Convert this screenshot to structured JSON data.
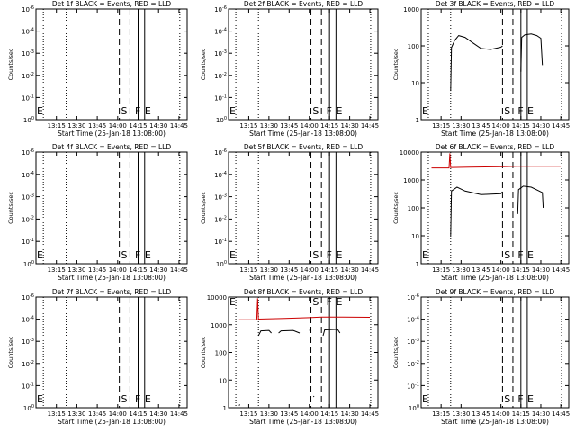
{
  "figure": {
    "xlabel": "Start Time (25-Jan-18 13:08:00)",
    "ylabel": "Counts/sec",
    "x_ticks": [
      "13:15",
      "13:30",
      "13:45",
      "14:00",
      "14:15",
      "14:30",
      "14:45"
    ],
    "marker_labels": [
      "E",
      "S",
      "F",
      "E"
    ],
    "colors": {
      "events": "#000000",
      "lld": "#cc0000"
    }
  },
  "chart_data": [
    {
      "type": "line",
      "title": "Det 1f BLACK = Events, RED = LLD",
      "scale": "log",
      "y_ticks": [
        "10^-6",
        "10^-4",
        "10^-3",
        "10^-2",
        "10^-1",
        "10^0"
      ],
      "series": []
    },
    {
      "type": "line",
      "title": "Det 2f BLACK = Events, RED = LLD",
      "scale": "log",
      "y_ticks": [
        "10^-6",
        "10^-4",
        "10^-3",
        "10^-2",
        "10^-1",
        "10^0"
      ],
      "series": []
    },
    {
      "type": "line",
      "title": "Det 3f BLACK = Events, RED = LLD",
      "scale": "log",
      "y_ticks": [
        "1000",
        "100",
        "10",
        "1"
      ],
      "series": [
        {
          "color": "#000000",
          "segments": [
            [
              [
                13.37,
                6
              ],
              [
                13.38,
                90
              ],
              [
                13.42,
                140
              ],
              [
                13.47,
                190
              ],
              [
                13.55,
                170
              ],
              [
                13.65,
                120
              ],
              [
                13.75,
                85
              ],
              [
                13.87,
                80
              ],
              [
                14.0,
                92
              ],
              [
                14.02,
                100
              ]
            ],
            [
              [
                14.25,
                20
              ],
              [
                14.26,
                170
              ],
              [
                14.3,
                200
              ],
              [
                14.38,
                210
              ],
              [
                14.45,
                190
              ],
              [
                14.5,
                160
              ],
              [
                14.52,
                30
              ]
            ]
          ]
        }
      ]
    },
    {
      "type": "line",
      "title": "Det 4f BLACK = Events, RED = LLD",
      "scale": "log",
      "y_ticks": [
        "10^-6",
        "10^-4",
        "10^-3",
        "10^-2",
        "10^-1",
        "10^0"
      ],
      "series": []
    },
    {
      "type": "line",
      "title": "Det 5f BLACK = Events, RED = LLD",
      "scale": "log",
      "y_ticks": [
        "10^-6",
        "10^-4",
        "10^-3",
        "10^-2",
        "10^-1",
        "10^0"
      ],
      "series": []
    },
    {
      "type": "line",
      "title": "Det 6f BLACK = Events, RED = LLD",
      "scale": "log",
      "y_ticks": [
        "10000",
        "1000",
        "100",
        "10",
        "1"
      ],
      "series": [
        {
          "color": "#cc0000",
          "segments": [
            [
              [
                13.13,
                2700
              ],
              [
                13.35,
                2700
              ],
              [
                13.36,
                9000
              ],
              [
                13.37,
                2800
              ],
              [
                13.6,
                2900
              ],
              [
                14.0,
                3000
              ],
              [
                14.2,
                3100
              ],
              [
                14.3,
                3100
              ],
              [
                14.75,
                3100
              ]
            ]
          ]
        },
        {
          "color": "#000000",
          "segments": [
            [
              [
                13.37,
                10
              ],
              [
                13.38,
                400
              ],
              [
                13.45,
                550
              ],
              [
                13.55,
                400
              ],
              [
                13.75,
                300
              ],
              [
                14.0,
                320
              ],
              [
                14.02,
                380
              ]
            ],
            [
              [
                14.21,
                60
              ],
              [
                14.22,
                450
              ],
              [
                14.28,
                600
              ],
              [
                14.38,
                550
              ],
              [
                14.48,
                400
              ],
              [
                14.52,
                350
              ],
              [
                14.53,
                100
              ]
            ]
          ]
        }
      ]
    },
    {
      "type": "line",
      "title": "Det 7f BLACK = Events, RED = LLD",
      "scale": "log",
      "y_ticks": [
        "10^-6",
        "10^-4",
        "10^-3",
        "10^-2",
        "10^-1",
        "10^0"
      ],
      "series": []
    },
    {
      "type": "line",
      "title": "Det 8f BLACK = Events, RED = LLD",
      "scale": "log",
      "y_ticks": [
        "10000",
        "1000",
        "100",
        "10",
        "1"
      ],
      "series": [
        {
          "color": "#cc0000",
          "segments": [
            [
              [
                13.13,
                1500
              ],
              [
                13.35,
                1500
              ],
              [
                13.36,
                9000
              ],
              [
                13.37,
                1600
              ],
              [
                13.7,
                1700
              ],
              [
                14.0,
                1800
              ],
              [
                14.15,
                1900
              ],
              [
                14.25,
                1900
              ],
              [
                14.75,
                1850
              ]
            ]
          ]
        },
        {
          "color": "#000000",
          "segments": [
            [
              [
                13.37,
                400
              ],
              [
                13.4,
                600
              ],
              [
                13.5,
                620
              ],
              [
                13.53,
                500
              ]
            ],
            [
              [
                13.62,
                500
              ],
              [
                13.65,
                600
              ],
              [
                13.8,
                620
              ],
              [
                13.88,
                500
              ]
            ],
            [
              [
                14.0,
                620
              ],
              [
                14.02,
                650
              ]
            ],
            [
              [
                14.17,
                400
              ],
              [
                14.19,
                650
              ],
              [
                14.35,
                680
              ],
              [
                14.38,
                500
              ]
            ],
            [
              [
                14.05,
                2.5
              ],
              [
                14.06,
                2.6
              ]
            ],
            [
              [
                13.13,
                1.2
              ],
              [
                13.14,
                1.3
              ]
            ]
          ]
        }
      ]
    },
    {
      "type": "line",
      "title": "Det 9f BLACK = Events, RED = LLD",
      "scale": "log",
      "y_ticks": [
        "10^-6",
        "10^-4",
        "10^-3",
        "10^-2",
        "10^-1",
        "10^0"
      ],
      "series": []
    }
  ]
}
